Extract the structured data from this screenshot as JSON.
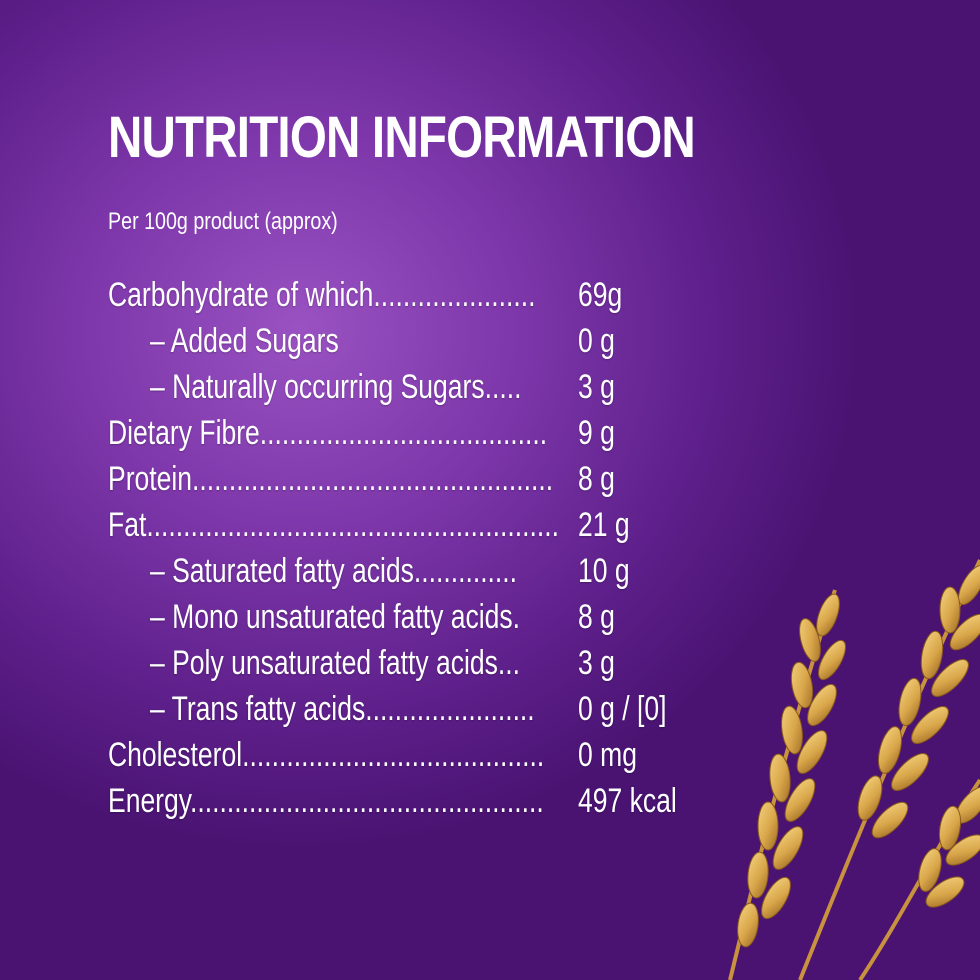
{
  "header": {
    "title": "NUTRITION INFORMATION",
    "subtitle": "Per 100g product (approx)"
  },
  "rows": [
    {
      "label": "Carbohydrate of which......................",
      "value": "69g",
      "sub": false
    },
    {
      "label": "– Added Sugars",
      "value": "0 g",
      "sub": true
    },
    {
      "label": "– Naturally occurring Sugars.....",
      "value": "3 g",
      "sub": true
    },
    {
      "label": "Dietary Fibre.......................................",
      "value": "9 g",
      "sub": false
    },
    {
      "label": "Protein.................................................",
      "value": "8 g",
      "sub": false
    },
    {
      "label": "Fat........................................................",
      "value": "21 g",
      "sub": false
    },
    {
      "label": "– Saturated fatty acids..............",
      "value": "10 g",
      "sub": true
    },
    {
      "label": "– Mono unsaturated fatty acids.",
      "value": "8 g",
      "sub": true
    },
    {
      "label": "– Poly unsaturated fatty acids...",
      "value": "3 g",
      "sub": true
    },
    {
      "label": "– Trans fatty acids.......................",
      "value": "0 g / [0]",
      "sub": true
    },
    {
      "label": "Cholesterol.........................................",
      "value": "0 mg",
      "sub": false
    },
    {
      "label": "Energy................................................",
      "value": "497 kcal",
      "sub": false
    }
  ],
  "colors": {
    "background": "#6a2898",
    "text": "#ffffff",
    "wheat": "#d9a64a"
  },
  "decoration": {
    "icon": "wheat-icon"
  }
}
